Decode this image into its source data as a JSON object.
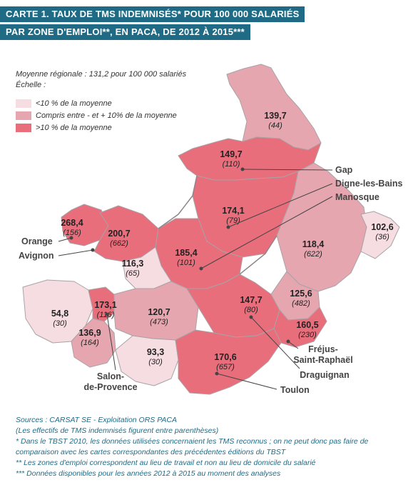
{
  "title": {
    "line1": "CARTE 1. TAUX DE TMS INDEMNISÉS* POUR 100 000 SALARIÉS",
    "line2": "PAR ZONE D'EMPLOI**, EN PACA, DE 2012 À 2015***"
  },
  "legend": {
    "average": "Moyenne régionale : 131,2 pour 100 000 salariés",
    "scale": "Échelle :",
    "items": [
      {
        "label": "<10 % de la moyenne",
        "color": "#f6dde2"
      },
      {
        "label": "Compris entre - et + 10% de la moyenne",
        "color": "#e6a6b0"
      },
      {
        "label": ">10 % de la moyenne",
        "color": "#e86e7c"
      }
    ]
  },
  "zones": [
    {
      "value": "139,7",
      "count": "(44)"
    },
    {
      "value": "149,7",
      "count": "(110)"
    },
    {
      "value": "174,1",
      "count": "(79)"
    },
    {
      "value": "268,4",
      "count": "(156)"
    },
    {
      "value": "200,7",
      "count": "(662)"
    },
    {
      "value": "118,4",
      "count": "(622)"
    },
    {
      "value": "102,6",
      "count": "(36)"
    },
    {
      "value": "185,4",
      "count": "(101)"
    },
    {
      "value": "116,3",
      "count": "(65)"
    },
    {
      "value": "147,7",
      "count": "(80)"
    },
    {
      "value": "125,6",
      "count": "(482)"
    },
    {
      "value": "173,1",
      "count": "(116)"
    },
    {
      "value": "120,7",
      "count": "(473)"
    },
    {
      "value": "54,8",
      "count": "(30)"
    },
    {
      "value": "160,5",
      "count": "(230)"
    },
    {
      "value": "136,9",
      "count": "(164)"
    },
    {
      "value": "93,3",
      "count": "(30)"
    },
    {
      "value": "170,6",
      "count": "(657)"
    }
  ],
  "cities": {
    "gap": "Gap",
    "digne": "Digne-les-Bains",
    "manosque": "Manosque",
    "orange": "Orange",
    "avignon": "Avignon",
    "frejus1": "Fréjus-",
    "frejus2": "Saint-Raphaël",
    "draguignan": "Draguignan",
    "toulon": "Toulon",
    "salon1": "Salon-",
    "salon2": "de-Provence"
  },
  "sources": [
    "Sources : CARSAT SE - Exploitation ORS PACA",
    "(Les effectifs de TMS indemnisés figurent entre parenthèses)",
    "* Dans le TBST 2010, les données utilisées concernaient les TMS reconnus ; on ne peut donc pas faire de",
    "comparaison avec les cartes correspondantes des précédentes éditions du TBST",
    "** Les zones d'emploi correspondent au lieu de travail et non au lieu de domicile du salarié",
    "*** Données disponibles pour les années 2012 à 2015 au moment des analyses"
  ]
}
